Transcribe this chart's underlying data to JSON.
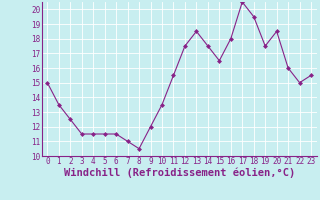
{
  "x": [
    0,
    1,
    2,
    3,
    4,
    5,
    6,
    7,
    8,
    9,
    10,
    11,
    12,
    13,
    14,
    15,
    16,
    17,
    18,
    19,
    20,
    21,
    22,
    23
  ],
  "y": [
    15,
    13.5,
    12.5,
    11.5,
    11.5,
    11.5,
    11.5,
    11.0,
    10.5,
    12.0,
    13.5,
    15.5,
    17.5,
    18.5,
    17.5,
    16.5,
    18.0,
    20.5,
    19.5,
    17.5,
    18.5,
    16.0,
    15.0,
    15.5
  ],
  "line_color": "#882288",
  "marker_color": "#882288",
  "bg_color": "#c8eef0",
  "grid_color": "#ffffff",
  "xlabel": "Windchill (Refroidissement éolien,°C)",
  "ylim": [
    10,
    20.5
  ],
  "xlim": [
    -0.5,
    23.5
  ],
  "yticks": [
    10,
    11,
    12,
    13,
    14,
    15,
    16,
    17,
    18,
    19,
    20
  ],
  "xticks": [
    0,
    1,
    2,
    3,
    4,
    5,
    6,
    7,
    8,
    9,
    10,
    11,
    12,
    13,
    14,
    15,
    16,
    17,
    18,
    19,
    20,
    21,
    22,
    23
  ],
  "tick_label_fontsize": 5.5,
  "xlabel_fontsize": 7.5,
  "spine_color": "#882288"
}
